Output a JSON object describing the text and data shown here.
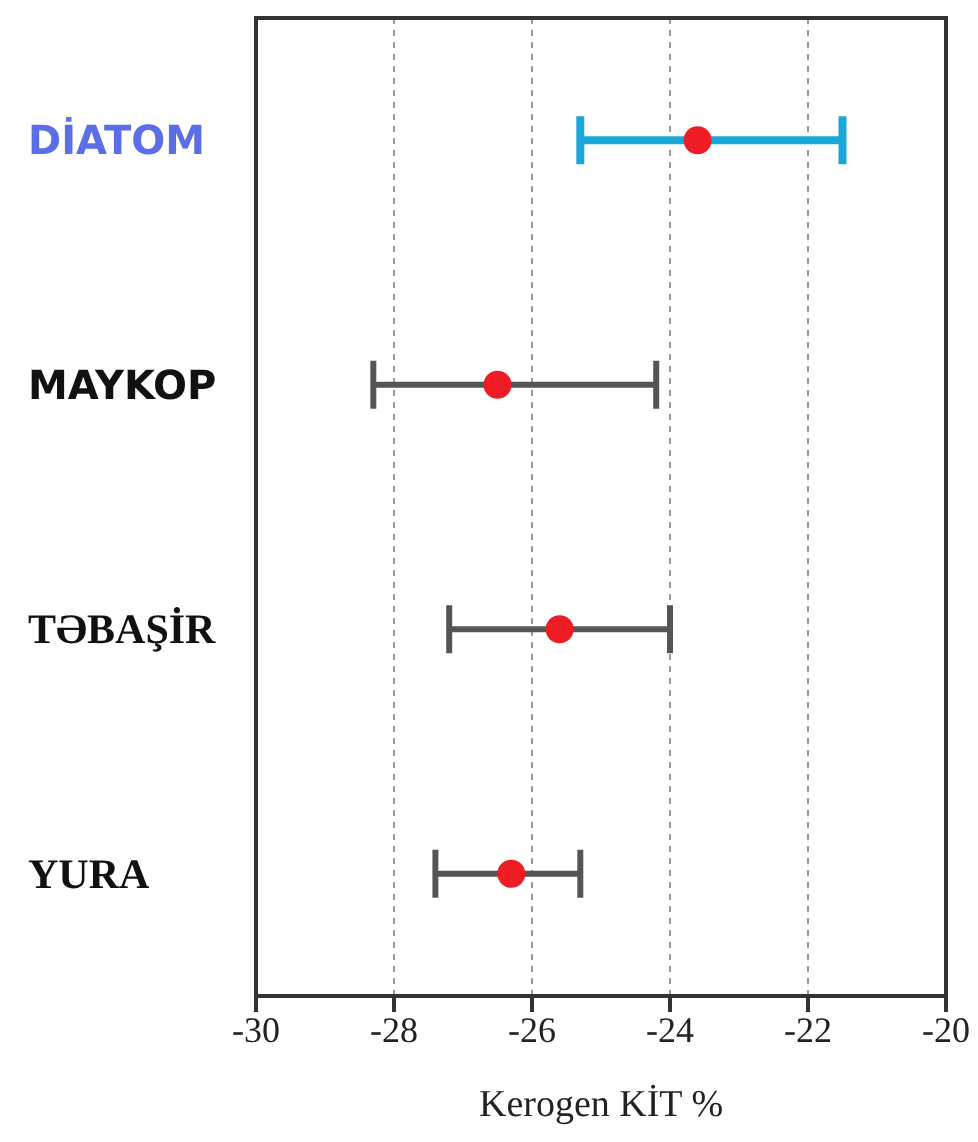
{
  "chart_data": {
    "type": "scatter",
    "orientation": "horizontal",
    "xlabel": "Kerogen  KİT %",
    "categories": [
      "DİATOM",
      "MAYKOP",
      "TƏBAŞİR",
      "YURA"
    ],
    "values": [
      -23.6,
      -26.5,
      -25.6,
      -26.3
    ],
    "errors": [
      [
        -25.3,
        -21.5
      ],
      [
        -28.3,
        -24.2
      ],
      [
        -27.2,
        -24.0
      ],
      [
        -27.4,
        -25.3
      ]
    ],
    "color": "#ee1c25",
    "marker": "circle",
    "xlim": [
      -30,
      -20
    ],
    "xticks": [
      -30,
      -28,
      -26,
      -24,
      -22,
      -20
    ],
    "grid": "x"
  }
}
